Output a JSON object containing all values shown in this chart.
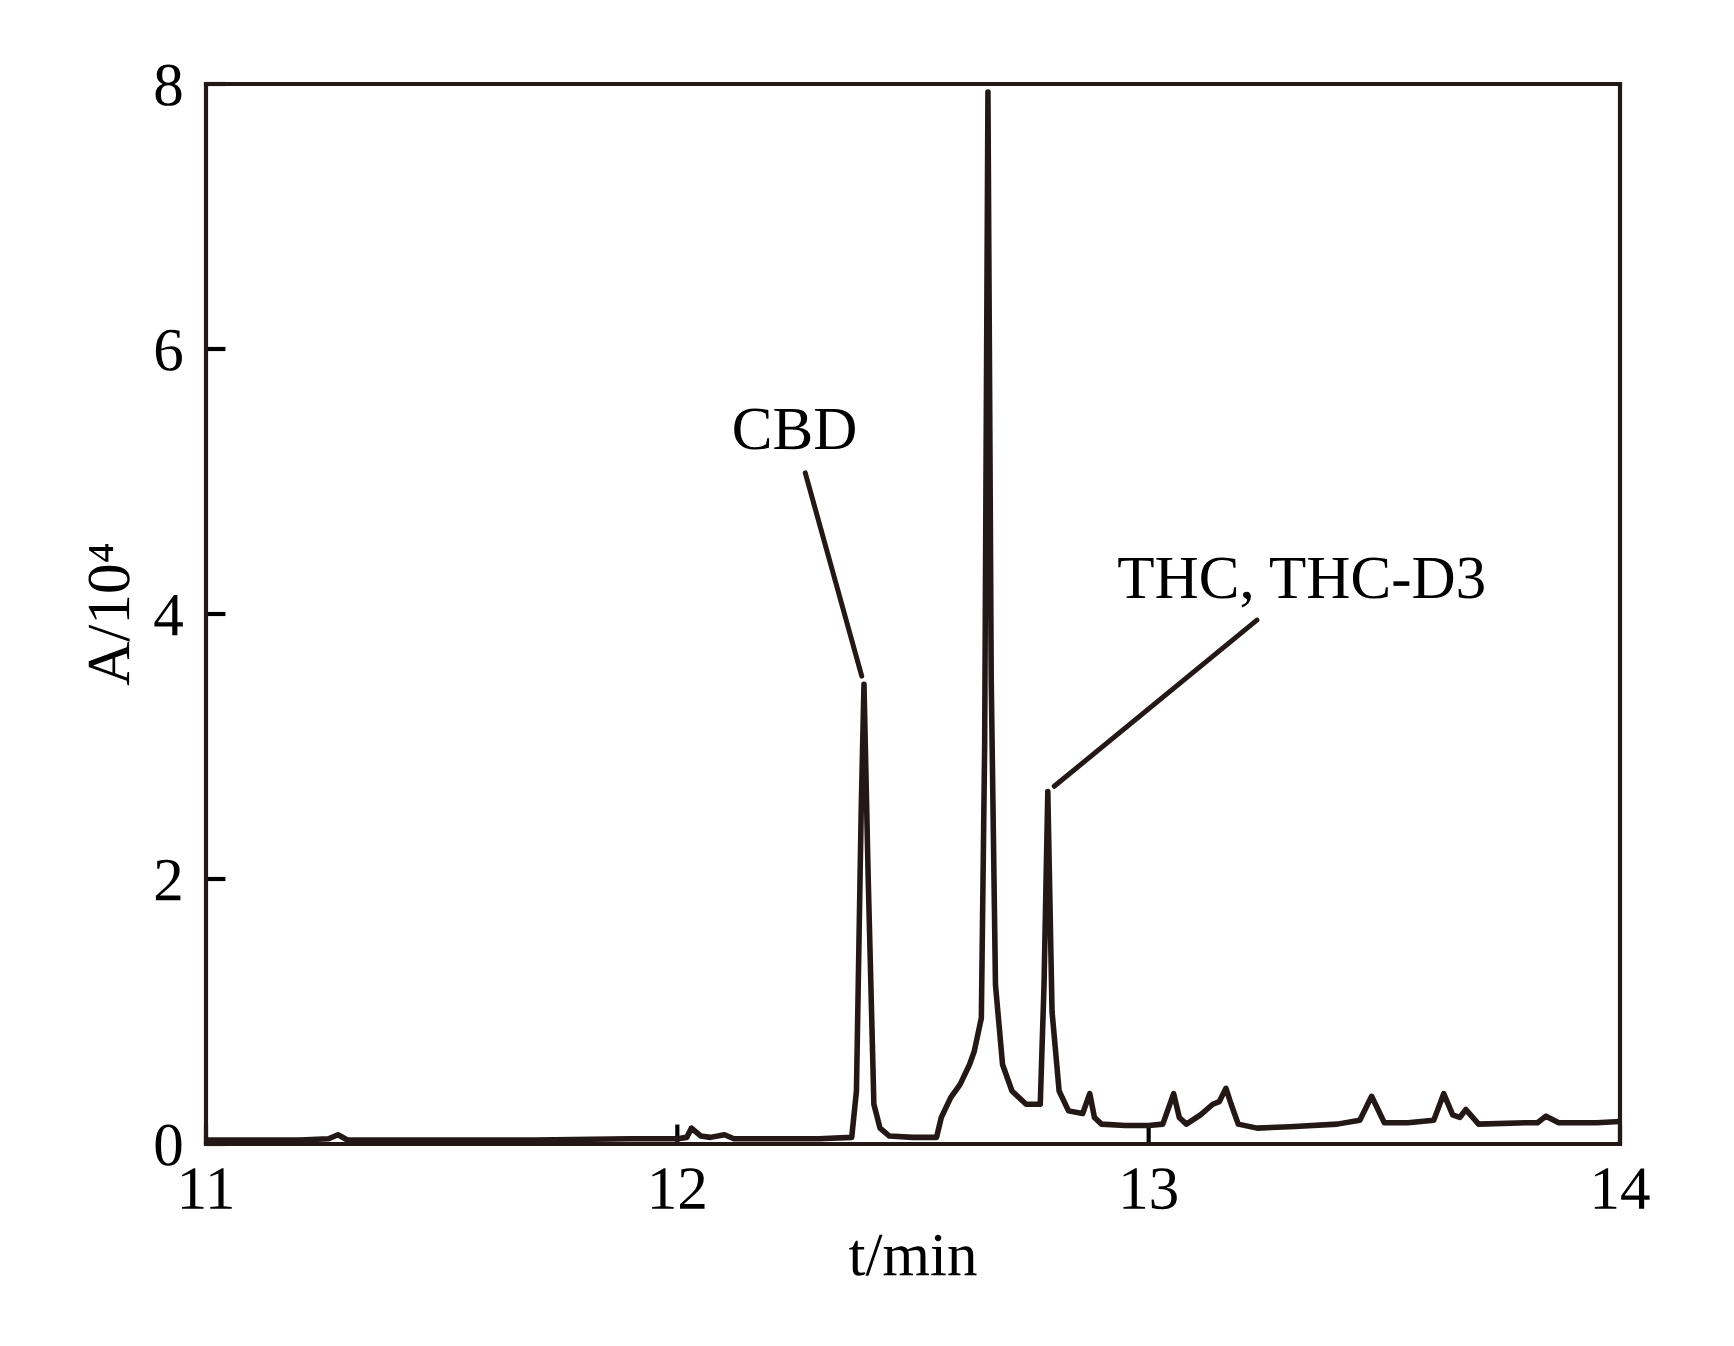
{
  "chart_data": {
    "type": "line",
    "xlabel": "t/min",
    "ylabel": "A/10⁴",
    "xlim": [
      11,
      14
    ],
    "ylim": [
      0,
      8
    ],
    "xticks": [
      11,
      12,
      13,
      14
    ],
    "yticks": [
      0,
      2,
      4,
      6,
      8
    ],
    "grid": false,
    "series": [
      {
        "color": "#231815",
        "x": [
          11.0,
          11.1,
          11.2,
          11.26,
          11.28,
          11.3,
          11.5,
          11.7,
          11.9,
          12.0,
          12.02,
          12.03,
          12.05,
          12.07,
          12.1,
          12.12,
          12.2,
          12.3,
          12.37,
          12.38,
          12.39,
          12.396,
          12.405,
          12.417,
          12.43,
          12.45,
          12.5,
          12.55,
          12.56,
          12.58,
          12.6,
          12.62,
          12.63,
          12.645,
          12.652,
          12.659,
          12.666,
          12.675,
          12.69,
          12.71,
          12.74,
          12.77,
          12.778,
          12.786,
          12.795,
          12.81,
          12.83,
          12.86,
          12.875,
          12.885,
          12.9,
          12.95,
          13.0,
          13.03,
          13.04,
          13.053,
          13.065,
          13.08,
          13.11,
          13.136,
          13.15,
          13.164,
          13.175,
          13.19,
          13.23,
          13.3,
          13.4,
          13.448,
          13.473,
          13.5,
          13.55,
          13.605,
          13.626,
          13.645,
          13.66,
          13.673,
          13.7,
          13.8,
          13.825,
          13.843,
          13.87,
          13.95,
          14.0
        ],
        "values": [
          0.03,
          0.03,
          0.03,
          0.04,
          0.07,
          0.03,
          0.03,
          0.03,
          0.04,
          0.04,
          0.05,
          0.12,
          0.06,
          0.05,
          0.07,
          0.04,
          0.04,
          0.04,
          0.05,
          0.4,
          2.5,
          3.47,
          2.0,
          0.3,
          0.12,
          0.06,
          0.05,
          0.05,
          0.2,
          0.35,
          0.45,
          0.6,
          0.7,
          0.95,
          3.0,
          7.94,
          3.5,
          1.2,
          0.6,
          0.4,
          0.3,
          0.3,
          1.2,
          2.66,
          1.0,
          0.4,
          0.25,
          0.23,
          0.38,
          0.2,
          0.15,
          0.14,
          0.14,
          0.15,
          0.25,
          0.38,
          0.2,
          0.15,
          0.22,
          0.3,
          0.32,
          0.42,
          0.3,
          0.15,
          0.12,
          0.13,
          0.15,
          0.18,
          0.36,
          0.16,
          0.16,
          0.18,
          0.38,
          0.22,
          0.2,
          0.26,
          0.15,
          0.16,
          0.16,
          0.21,
          0.16,
          0.16,
          0.17
        ]
      }
    ],
    "annotations": [
      {
        "text": "CBD",
        "x": 12.396,
        "y": 3.47
      },
      {
        "text": "THC, THC-D3",
        "x": 12.786,
        "y": 2.66
      }
    ]
  }
}
